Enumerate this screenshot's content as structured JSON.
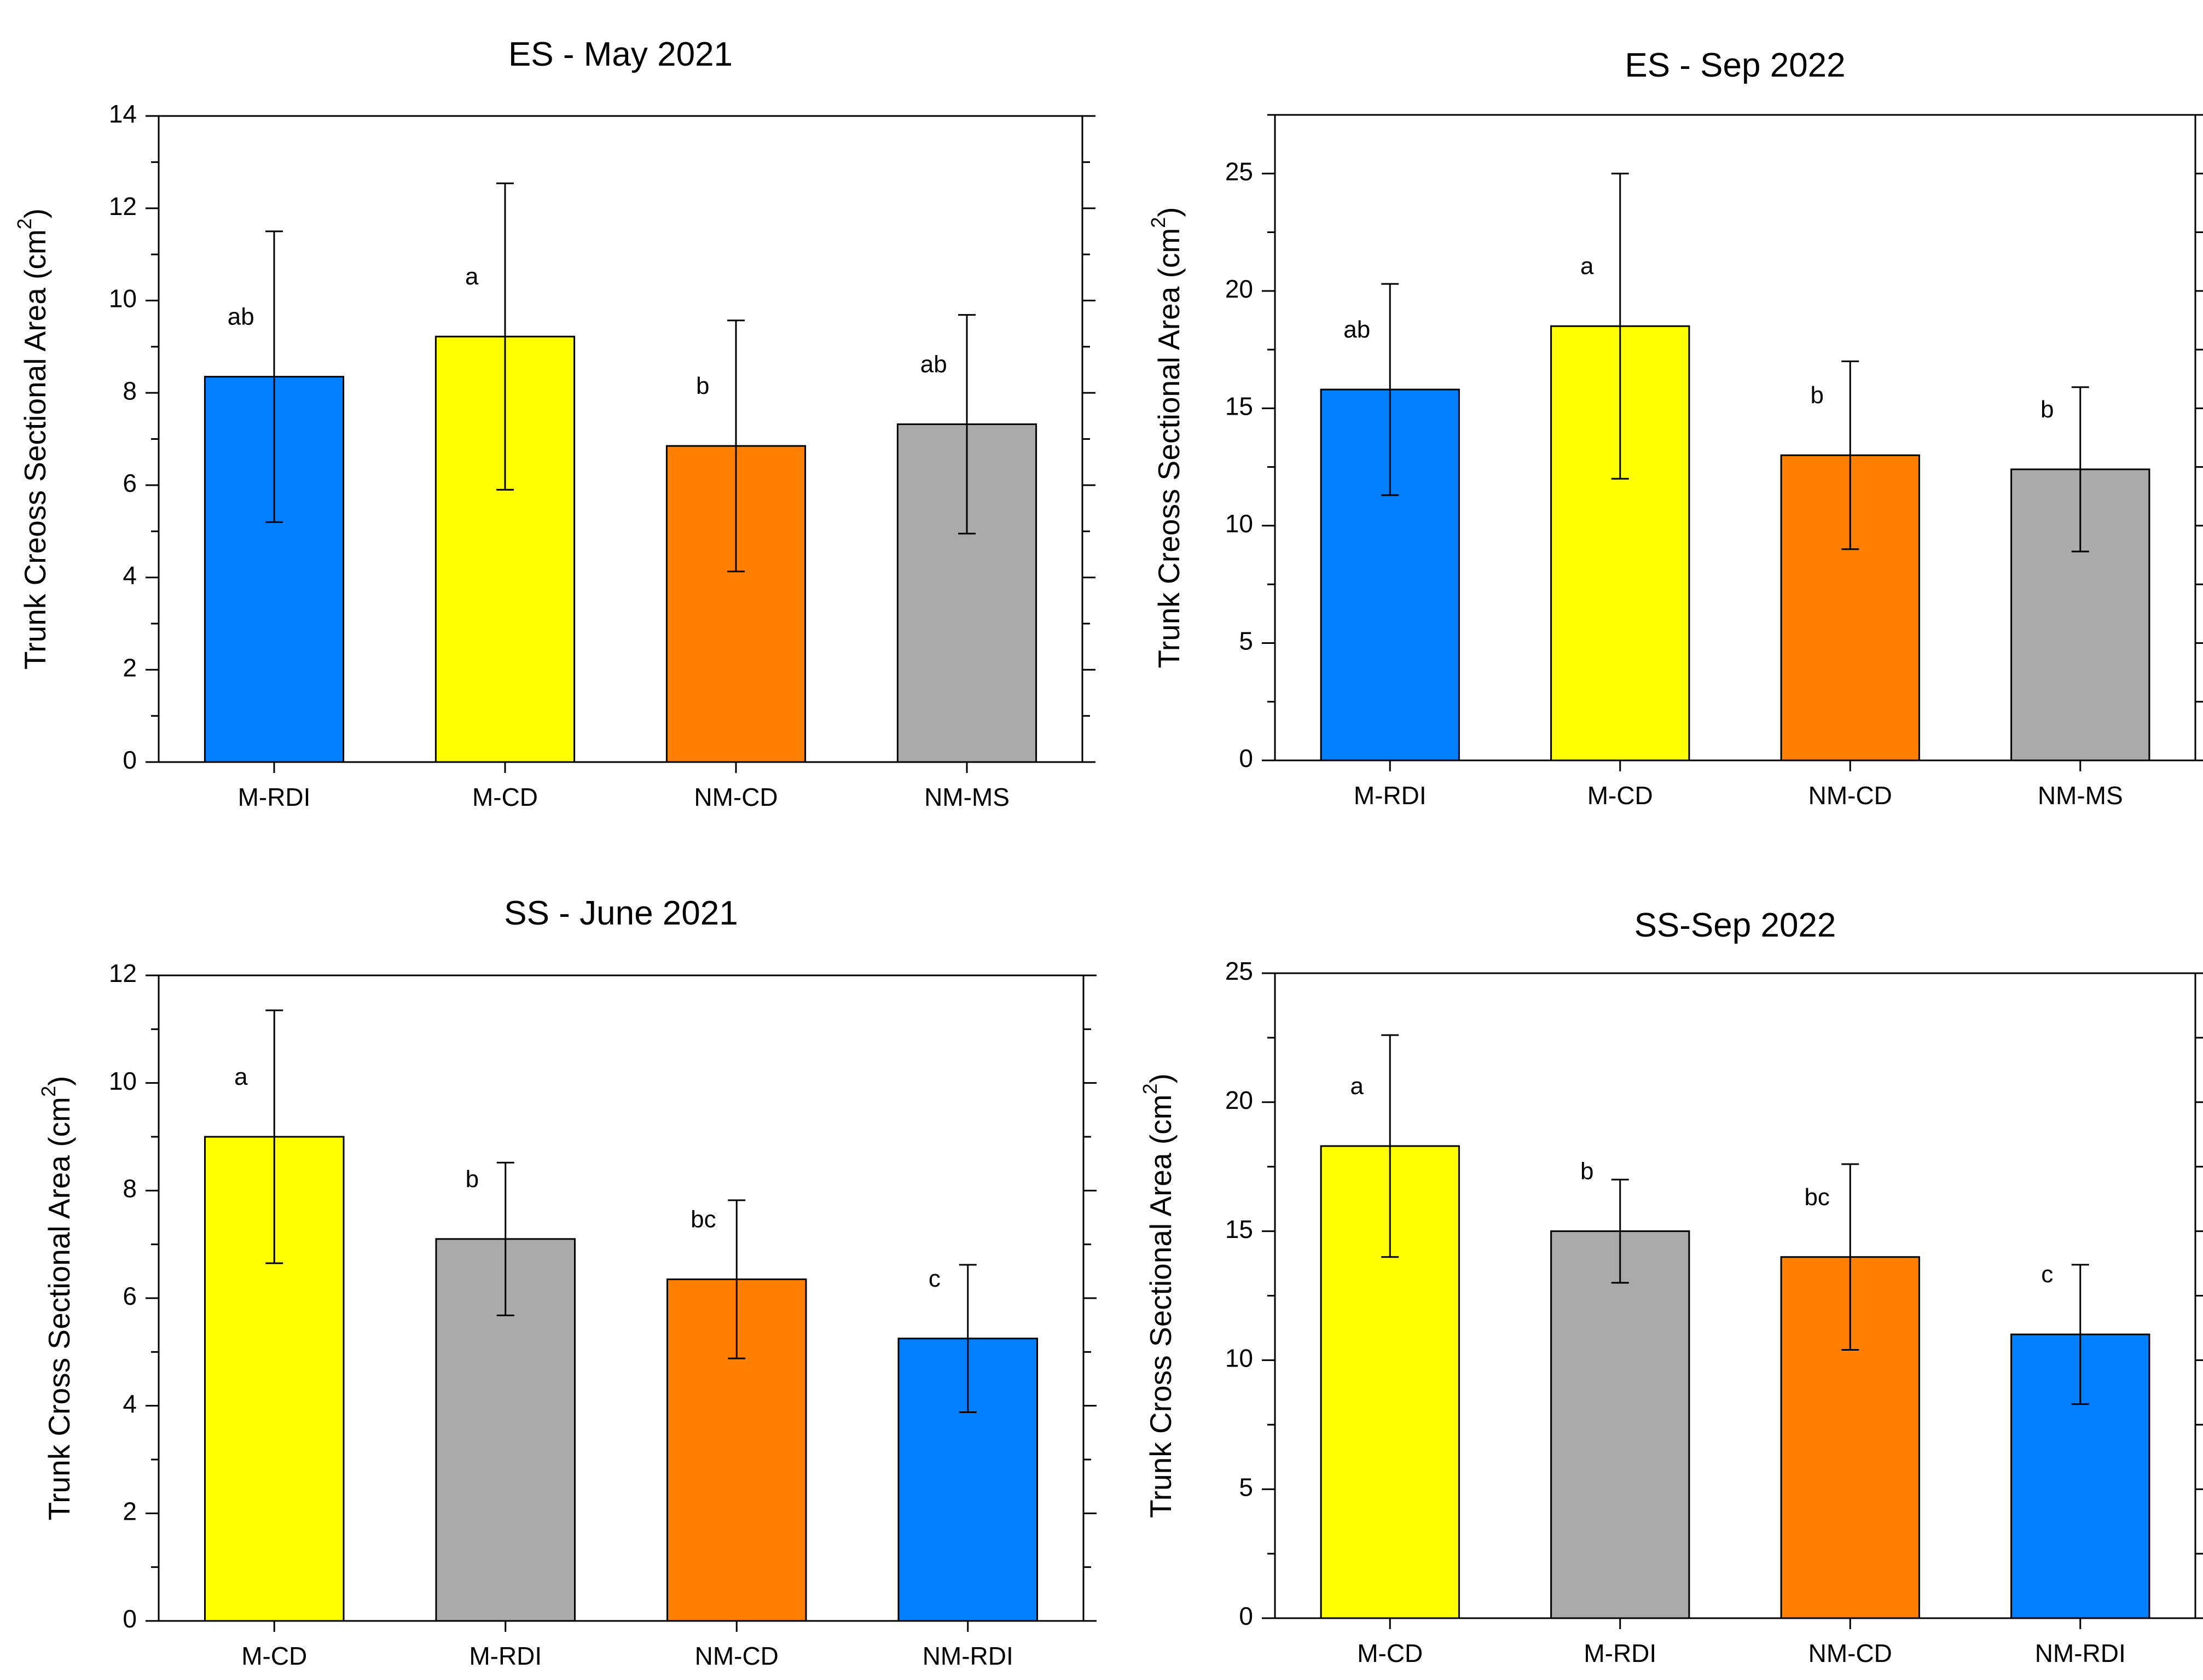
{
  "chart_data": [
    {
      "type": "bar",
      "title": "ES - May 2021",
      "ylabel": "Trunk Creoss Sectional Area (cm",
      "ylabel_sup": "2",
      "ylabel_end": ")",
      "xlabel": "",
      "ylim": [
        0,
        14
      ],
      "ytick_step": 2,
      "yticks": [
        "0",
        "2",
        "4",
        "6",
        "8",
        "10",
        "12",
        "14"
      ],
      "categories": [
        "M-RDI",
        "M-CD",
        "NM-CD",
        "NM-MS"
      ],
      "values": [
        8.35,
        9.22,
        6.85,
        7.32
      ],
      "errors": [
        3.15,
        3.32,
        2.72,
        2.37
      ],
      "letters": [
        "ab",
        "a",
        "b",
        "ab"
      ],
      "colors": [
        "#0080ff",
        "#ffff00",
        "#ff8000",
        "#aaaaaa"
      ]
    },
    {
      "type": "bar",
      "title": "ES - Sep 2022",
      "ylabel": "Trunk Creoss Sectional Area (cm",
      "ylabel_sup": "2",
      "ylabel_end": ")",
      "xlabel": "",
      "ylim": [
        0,
        27.5
      ],
      "ytick_step": 5,
      "yticks": [
        "0",
        "5",
        "10",
        "15",
        "20",
        "25"
      ],
      "categories": [
        "M-RDI",
        "M-CD",
        "NM-CD",
        "NM-MS"
      ],
      "values": [
        15.8,
        18.5,
        13.0,
        12.4
      ],
      "errors": [
        4.5,
        6.5,
        4.0,
        3.5
      ],
      "letters": [
        "ab",
        "a",
        "b",
        "b"
      ],
      "colors": [
        "#0080ff",
        "#ffff00",
        "#ff8000",
        "#aaaaaa"
      ]
    },
    {
      "type": "bar",
      "title": "SS - June 2021",
      "ylabel": "Trunk Cross Sectional Area (cm",
      "ylabel_sup": "2",
      "ylabel_end": ")",
      "xlabel": "",
      "ylim": [
        0,
        12
      ],
      "ytick_step": 2,
      "yticks": [
        "0",
        "2",
        "4",
        "6",
        "8",
        "10",
        "12"
      ],
      "categories": [
        "M-CD",
        "M-RDI",
        "NM-CD",
        "NM-RDI"
      ],
      "values": [
        9.0,
        7.1,
        6.35,
        5.25
      ],
      "errors": [
        2.35,
        1.42,
        1.47,
        1.37
      ],
      "letters": [
        "a",
        "b",
        "bc",
        "c"
      ],
      "colors": [
        "#ffff00",
        "#aaaaaa",
        "#ff8000",
        "#0080ff"
      ]
    },
    {
      "type": "bar",
      "title": "SS-Sep 2022",
      "ylabel": "Trunk Cross Sectional Area (cm",
      "ylabel_sup": "2",
      "ylabel_end": ")",
      "xlabel": "",
      "ylim": [
        0,
        25
      ],
      "ytick_step": 5,
      "yticks": [
        "0",
        "5",
        "10",
        "15",
        "20",
        "25"
      ],
      "categories": [
        "M-CD",
        "M-RDI",
        "NM-CD",
        "NM-RDI"
      ],
      "values": [
        18.3,
        15.0,
        14.0,
        11.0
      ],
      "errors": [
        4.3,
        2.0,
        3.6,
        2.7
      ],
      "letters": [
        "a",
        "b",
        "bc",
        "c"
      ],
      "colors": [
        "#ffff00",
        "#aaaaaa",
        "#ff8000",
        "#0080ff"
      ]
    }
  ]
}
